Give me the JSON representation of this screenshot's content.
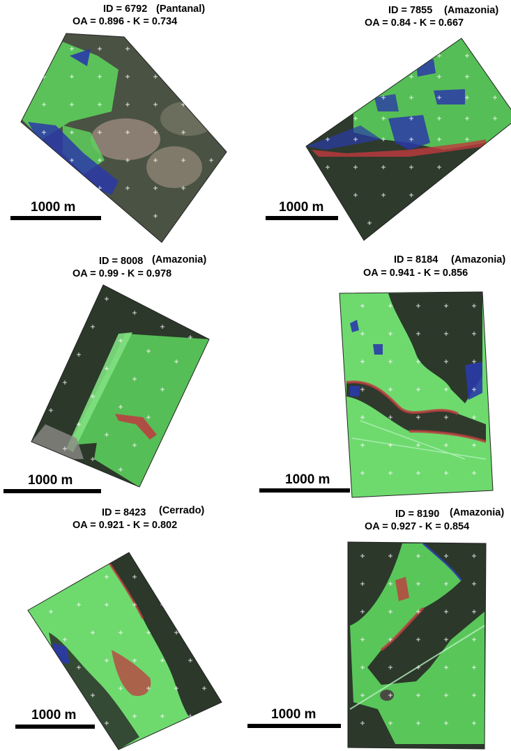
{
  "figure": {
    "panels": [
      {
        "id_label": "ID = 6792",
        "region_label": "(Pantanal)",
        "accuracy_label": "OA = 0.896 - K = 0.734",
        "scale_label": "1000 m"
      },
      {
        "id_label": "ID = 7855",
        "region_label": "(Amazonia)",
        "accuracy_label": "OA = 0.84 - K = 0.667",
        "scale_label": "1000 m"
      },
      {
        "id_label": "ID = 8008",
        "region_label": "(Amazonia)",
        "accuracy_label": "OA = 0.99 - K = 0.978",
        "scale_label": "1000 m"
      },
      {
        "id_label": "ID = 8184",
        "region_label": "(Amazonia)",
        "accuracy_label": "OA = 0.941 - K = 0.856",
        "scale_label": "1000 m"
      },
      {
        "id_label": "ID = 8423",
        "region_label": "(Cerrado)",
        "accuracy_label": "OA = 0.921 - K = 0.802",
        "scale_label": "1000 m"
      },
      {
        "id_label": "ID = 8190",
        "region_label": "(Amazonia)",
        "accuracy_label": "OA = 0.927 - K = 0.854",
        "scale_label": "1000 m"
      }
    ],
    "colors": {
      "forest": "#2b3a2b",
      "pasture": "#5ed65e",
      "water_class": "#2a3aa8",
      "edge_class": "#c0393f",
      "grid_marks": "#ffffff"
    }
  }
}
